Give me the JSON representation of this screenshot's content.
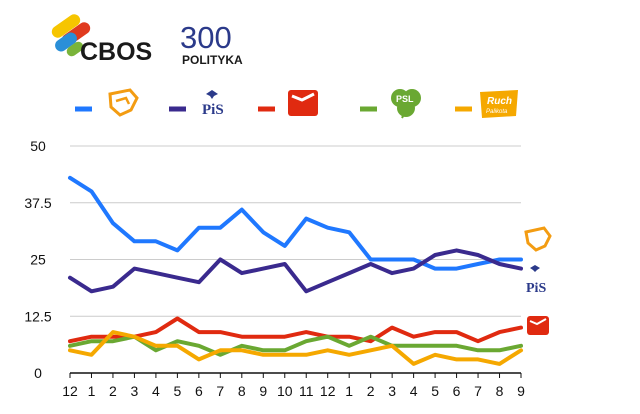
{
  "header": {
    "brand_cbos": "CBOS",
    "brand_300": "300",
    "brand_polityka": "POLITYKA"
  },
  "legend_text": {
    "pis": "PiS",
    "psl": "PSL",
    "ruch": "Ruch",
    "ruch_sub": "Palikota"
  },
  "colors": {
    "po": "#1f78ff",
    "pis": "#3a2a8e",
    "sld": "#e02a10",
    "psl": "#6aa832",
    "ruch": "#f5a800",
    "grid": "#cccccc",
    "axis": "#111111"
  },
  "chart_data": {
    "type": "line",
    "title": "",
    "xlabel": "",
    "ylabel": "",
    "ylim": [
      0,
      50
    ],
    "yticks": [
      "0",
      "12.5",
      "25",
      "37.5",
      "50"
    ],
    "categories": [
      "12",
      "1",
      "2",
      "3",
      "4",
      "5",
      "6",
      "7",
      "8",
      "9",
      "10",
      "11",
      "12",
      "1",
      "2",
      "3",
      "4",
      "5",
      "6",
      "7",
      "8",
      "9"
    ],
    "grid": true,
    "legend_position": "top",
    "series": [
      {
        "key": "po",
        "color": "#1f78ff",
        "values": [
          43,
          40,
          33,
          29,
          29,
          27,
          32,
          32,
          36,
          31,
          28,
          34,
          32,
          31,
          25,
          25,
          25,
          23,
          23,
          24,
          25,
          25
        ]
      },
      {
        "key": "pis",
        "color": "#3a2a8e",
        "values": [
          21,
          18,
          19,
          23,
          22,
          21,
          20,
          25,
          22,
          23,
          24,
          18,
          20,
          22,
          24,
          22,
          23,
          26,
          27,
          26,
          24,
          23
        ]
      },
      {
        "key": "sld",
        "color": "#e02a10",
        "values": [
          7,
          8,
          8,
          8,
          9,
          12,
          9,
          9,
          8,
          8,
          8,
          9,
          8,
          8,
          7,
          10,
          8,
          9,
          9,
          7,
          9,
          10
        ]
      },
      {
        "key": "psl",
        "color": "#6aa832",
        "values": [
          6,
          7,
          7,
          8,
          5,
          7,
          6,
          4,
          6,
          5,
          5,
          7,
          8,
          6,
          8,
          6,
          6,
          6,
          6,
          5,
          5,
          6
        ]
      },
      {
        "key": "ruch",
        "color": "#f5a800",
        "values": [
          5,
          4,
          9,
          8,
          6,
          6,
          3,
          5,
          5,
          4,
          4,
          4,
          5,
          4,
          5,
          6,
          2,
          4,
          3,
          3,
          2,
          5
        ]
      }
    ]
  }
}
